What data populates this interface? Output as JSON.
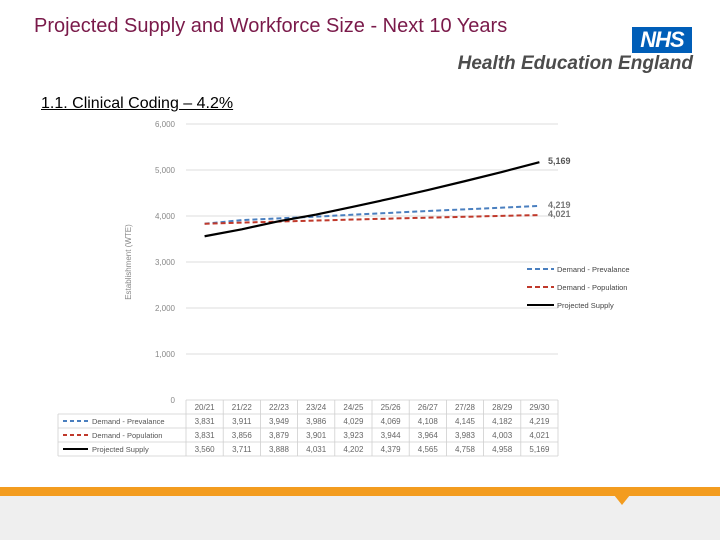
{
  "header": {
    "title": "Projected Supply and Workforce Size - Next 10 Years",
    "logo_badge": "NHS",
    "logo_org": "Health Education England"
  },
  "section": {
    "heading": "1.1. Clinical Coding – 4.2%"
  },
  "colors": {
    "title": "#7a1a4a",
    "prevalence": "#4a7fbf",
    "population": "#c0392b",
    "supply": "#000000",
    "footer_orange": "#f39c1f"
  },
  "chart_data": {
    "type": "line",
    "title": "1.1. Clinical Coding – 4.2%",
    "ylabel": "Establishment (WTE)",
    "xlabel": "",
    "ylim": [
      0,
      6000
    ],
    "yticks": [
      "0",
      "1,000",
      "2,000",
      "3,000",
      "4,000",
      "5,000",
      "6,000"
    ],
    "categories": [
      "20/21",
      "21/22",
      "22/23",
      "23/24",
      "24/25",
      "25/26",
      "26/27",
      "27/28",
      "28/29",
      "29/30"
    ],
    "series": [
      {
        "name": "Demand - Prevalance",
        "style": "dashed",
        "values": [
          3831,
          3911,
          3949,
          3986,
          4029,
          4069,
          4108,
          4145,
          4182,
          4219
        ],
        "labels": [
          "3,831",
          "3,911",
          "3,949",
          "3,986",
          "4,029",
          "4,069",
          "4,108",
          "4,145",
          "4,182",
          "4,219"
        ],
        "end_label": "4,219"
      },
      {
        "name": "Demand - Population",
        "style": "dashed",
        "values": [
          3831,
          3856,
          3879,
          3901,
          3923,
          3944,
          3964,
          3983,
          4003,
          4021
        ],
        "labels": [
          "3,831",
          "3,856",
          "3,879",
          "3,901",
          "3,923",
          "3,944",
          "3,964",
          "3,983",
          "4,003",
          "4,021"
        ],
        "end_label": "4,021"
      },
      {
        "name": "Projected Supply",
        "style": "solid",
        "values": [
          3560,
          3711,
          3888,
          4031,
          4202,
          4379,
          4565,
          4758,
          4958,
          5169
        ],
        "labels": [
          "3,560",
          "3,711",
          "3,888",
          "4,031",
          "4,202",
          "4,379",
          "4,565",
          "4,758",
          "4,958",
          "5,169"
        ],
        "end_label": "5,169"
      }
    ]
  }
}
